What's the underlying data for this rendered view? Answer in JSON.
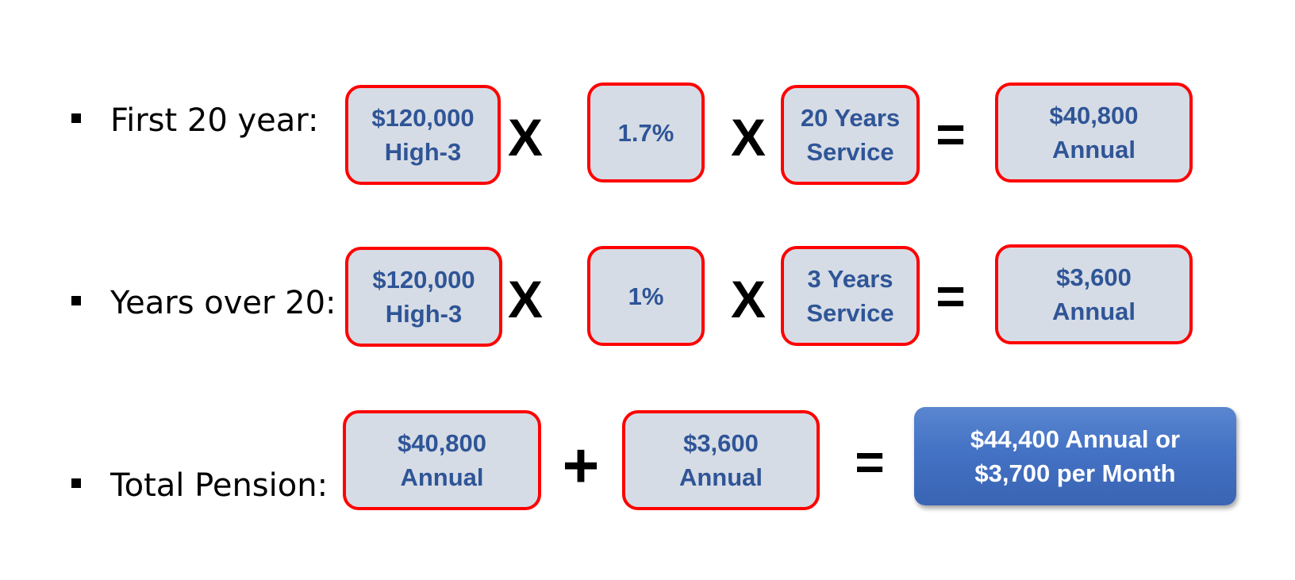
{
  "rows": [
    {
      "label": "First 20 year:",
      "high3": [
        "$120,000",
        "High-3"
      ],
      "op1": "X",
      "rate": "1.7%",
      "op2": "X",
      "service": [
        "20 Years",
        "Service"
      ],
      "eq": "=",
      "result": [
        "$40,800",
        "Annual"
      ]
    },
    {
      "label": "Years over 20:",
      "high3": [
        "$120,000",
        "High-3"
      ],
      "op1": "X",
      "rate": "1%",
      "op2": "X",
      "service": [
        "3 Years",
        "Service"
      ],
      "eq": "=",
      "result": [
        "$3,600",
        "Annual"
      ]
    }
  ],
  "total": {
    "label": "Total Pension:",
    "first": [
      "$40,800",
      "Annual"
    ],
    "plus": "+",
    "second": [
      "$3,600",
      "Annual"
    ],
    "eq": "=",
    "result": [
      "$44,400 Annual or",
      "$3,700 per Month"
    ]
  },
  "colors": {
    "box_fill": "#d6dce5",
    "box_border": "#ff0000",
    "box_text": "#2f5597",
    "result_fill": "#4472c4",
    "result_text": "#ffffff"
  }
}
